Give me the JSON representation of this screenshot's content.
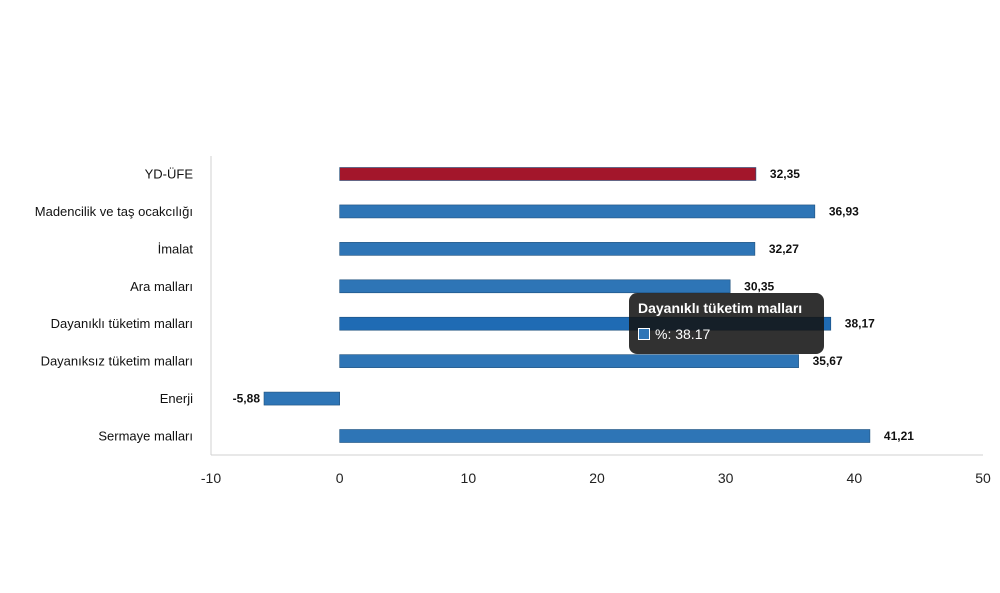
{
  "chart_data": {
    "type": "bar",
    "orientation": "horizontal",
    "categories": [
      "YD-ÜFE",
      "Madencilik ve taş ocakcılığı",
      "İmalat",
      "Ara malları",
      "Dayanıklı tüketim malları",
      "Dayanıksız tüketim malları",
      "Enerji",
      "Sermaye malları"
    ],
    "values": [
      32.35,
      36.93,
      32.27,
      30.35,
      38.17,
      35.67,
      -5.88,
      41.21
    ],
    "value_labels": [
      "32,35",
      "36,93",
      "32,27",
      "30,35",
      "38,17",
      "35,67",
      "-5,88",
      "41,21"
    ],
    "xlim": [
      -10,
      50
    ],
    "xticks": [
      -10,
      0,
      10,
      20,
      30,
      40,
      50
    ],
    "grid": false,
    "colors": {
      "default": "#2e75b6",
      "highlight": "#a3162b",
      "hover": "#1f6bb4"
    },
    "highlight_index": 0,
    "hover_index": 4
  },
  "tooltip": {
    "title": "Dayanıklı tüketim malları",
    "value_text": "%: 38.17"
  }
}
